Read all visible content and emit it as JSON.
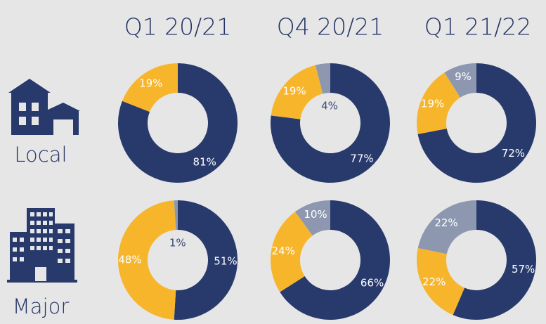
{
  "columns": [
    "Q1 20/21",
    "Q4 20/21",
    "Q1 21/22"
  ],
  "rows": [
    "Local",
    "Major"
  ],
  "chart_data": [
    {
      "type": "pie",
      "values": [
        81,
        19
      ],
      "value_labels": [
        "81%",
        "19%"
      ],
      "colors": [
        "#283a6c",
        "#f7b52c"
      ]
    },
    {
      "type": "pie",
      "values": [
        77,
        19,
        4
      ],
      "value_labels": [
        "77%",
        "19%",
        "4%"
      ],
      "colors": [
        "#283a6c",
        "#f7b52c",
        "#8d98b0"
      ]
    },
    {
      "type": "pie",
      "values": [
        72,
        19,
        9
      ],
      "value_labels": [
        "72%",
        "19%",
        "9%"
      ],
      "colors": [
        "#283a6c",
        "#f7b52c",
        "#8d98b0"
      ]
    },
    {
      "type": "pie",
      "values": [
        51,
        48,
        1
      ],
      "value_labels": [
        "51%",
        "48%",
        "1%"
      ],
      "colors": [
        "#283a6c",
        "#f7b52c",
        "#8d98b0"
      ]
    },
    {
      "type": "pie",
      "values": [
        66,
        24,
        10
      ],
      "value_labels": [
        "66%",
        "24%",
        "10%"
      ],
      "colors": [
        "#283a6c",
        "#f7b52c",
        "#8d98b0"
      ]
    },
    {
      "type": "pie",
      "values": [
        57,
        22,
        22
      ],
      "value_labels": [
        "57%",
        "22%",
        "22%"
      ],
      "colors": [
        "#283a6c",
        "#f7b52c",
        "#8d98b0"
      ]
    }
  ]
}
